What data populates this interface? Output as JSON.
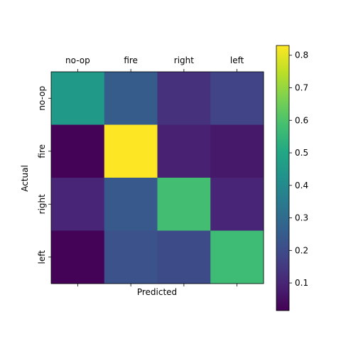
{
  "chart_data": {
    "type": "heatmap",
    "title": "",
    "xlabel": "Predicted",
    "ylabel": "Actual",
    "x_categories": [
      "no-op",
      "fire",
      "right",
      "left"
    ],
    "y_categories": [
      "no-op",
      "fire",
      "right",
      "left"
    ],
    "x_axis_position": "top",
    "matrix": [
      [
        0.45,
        0.25,
        0.13,
        0.18
      ],
      [
        0.02,
        0.83,
        0.09,
        0.07
      ],
      [
        0.1,
        0.24,
        0.58,
        0.1
      ],
      [
        0.02,
        0.22,
        0.2,
        0.57
      ]
    ],
    "colormap": "viridis",
    "colorbar": {
      "ticks": [
        "0.1",
        "0.2",
        "0.3",
        "0.4",
        "0.5",
        "0.6",
        "0.7",
        "0.8"
      ],
      "range": [
        0.015,
        0.83
      ]
    },
    "grid": false
  }
}
